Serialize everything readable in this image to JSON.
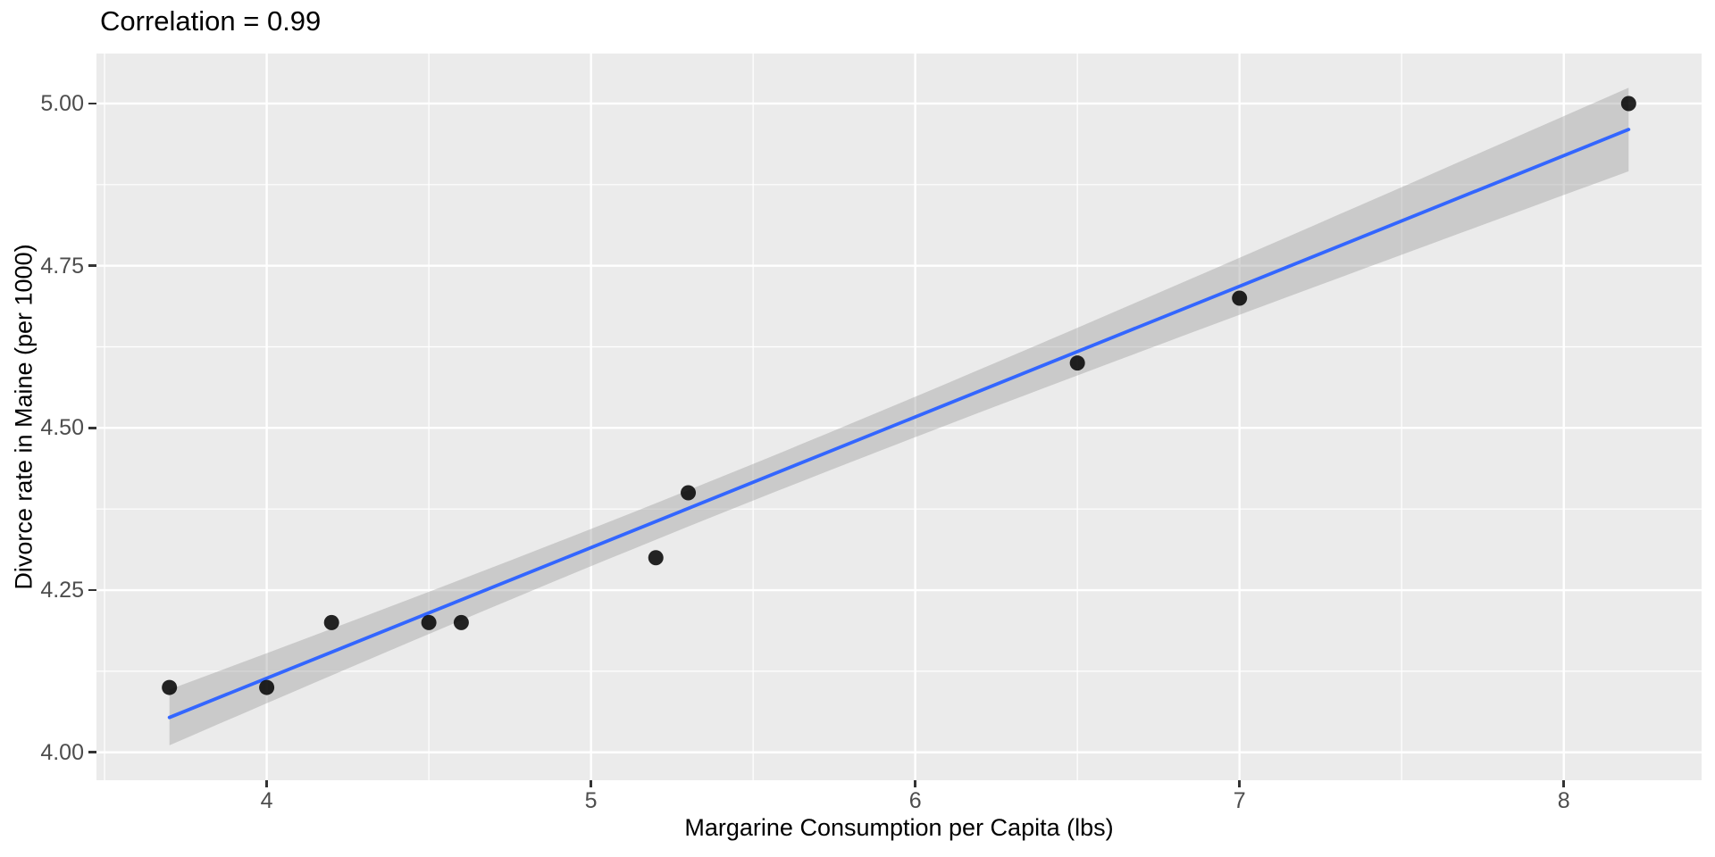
{
  "chart_data": {
    "type": "scatter",
    "title": "Correlation = 0.99",
    "correlation": 0.99,
    "xlabel": "Margarine Consumption per Capita (lbs)",
    "ylabel": "Divorce rate in Maine (per 1000)",
    "x": [
      8.2,
      7.0,
      6.5,
      5.3,
      5.2,
      4.0,
      4.6,
      4.5,
      4.2,
      3.7
    ],
    "y": [
      5.0,
      4.7,
      4.6,
      4.4,
      4.3,
      4.1,
      4.2,
      4.2,
      4.2,
      4.1
    ],
    "smooth": {
      "method": "linear",
      "ci_level": 0.95,
      "ribbon": true
    },
    "x_ticks": [
      4,
      5,
      6,
      7,
      8
    ],
    "x_tick_labels": [
      "4",
      "5",
      "6",
      "7",
      "8"
    ],
    "y_ticks": [
      4.0,
      4.25,
      4.5,
      4.75,
      5.0
    ],
    "y_tick_labels": [
      "4.00",
      "4.25",
      "4.50",
      "4.75",
      "5.00"
    ],
    "xlim": [
      3.475,
      8.425
    ],
    "ylim": [
      3.957,
      5.077
    ],
    "grid": true,
    "legend_position": "none",
    "colors": {
      "panel_background": "#EBEBEB",
      "gridline": "#FFFFFF",
      "point": "#000000",
      "point_opacity": 0.85,
      "smooth_line": "#3366FF",
      "ribbon_fill": "#999999",
      "ribbon_opacity": 0.4,
      "tick_text": "#4D4D4D",
      "tick_mark": "#333333",
      "axis_title_text": "#000000",
      "title_text": "#000000"
    }
  }
}
